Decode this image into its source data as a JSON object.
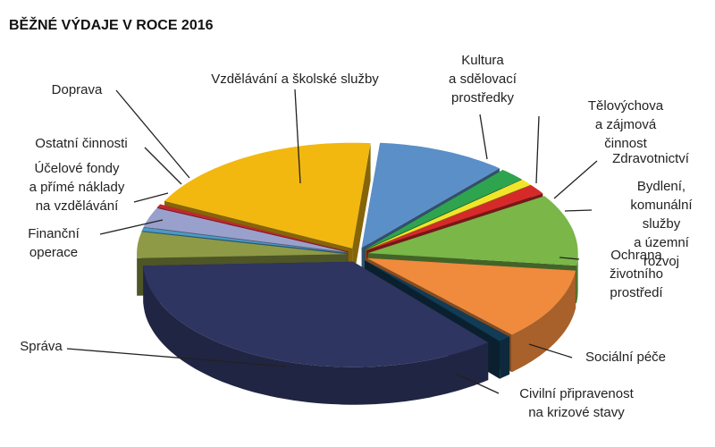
{
  "chart_data": {
    "type": "pie",
    "title": "BĚŽNÉ VÝDAJE V ROCE 2016",
    "categories": [
      "Kultura\na sdělovací\nprostředky",
      "Tělovýchova\na zájmová činnost",
      "Zdravotnictví",
      "Bydlení,\nkomunální služby\na územní rozvoj",
      "Ochrana\nživotního\nprostředí",
      "Sociální péče",
      "Civilní připravenost\nna krizové stavy",
      "Správa",
      "Finanční\noperace",
      "Účelové fondy\na přímé náklady\nna vzdělávání",
      "Ostatní činnosti",
      "Doprava",
      "Vzdělávání a školské služby"
    ],
    "values": [
      10,
      2,
      1,
      1.5,
      11,
      11,
      1,
      35.5,
      4,
      0.5,
      3,
      0.5,
      19
    ],
    "colors": [
      "#5b8fc7",
      "#2ea44f",
      "#f0e52a",
      "#d62a2a",
      "#7ab648",
      "#f08a3c",
      "#123b55",
      "#2e3560",
      "#8e9a45",
      "#4a9ac6",
      "#9aa0cc",
      "#c0282e",
      "#f2b80f"
    ]
  }
}
